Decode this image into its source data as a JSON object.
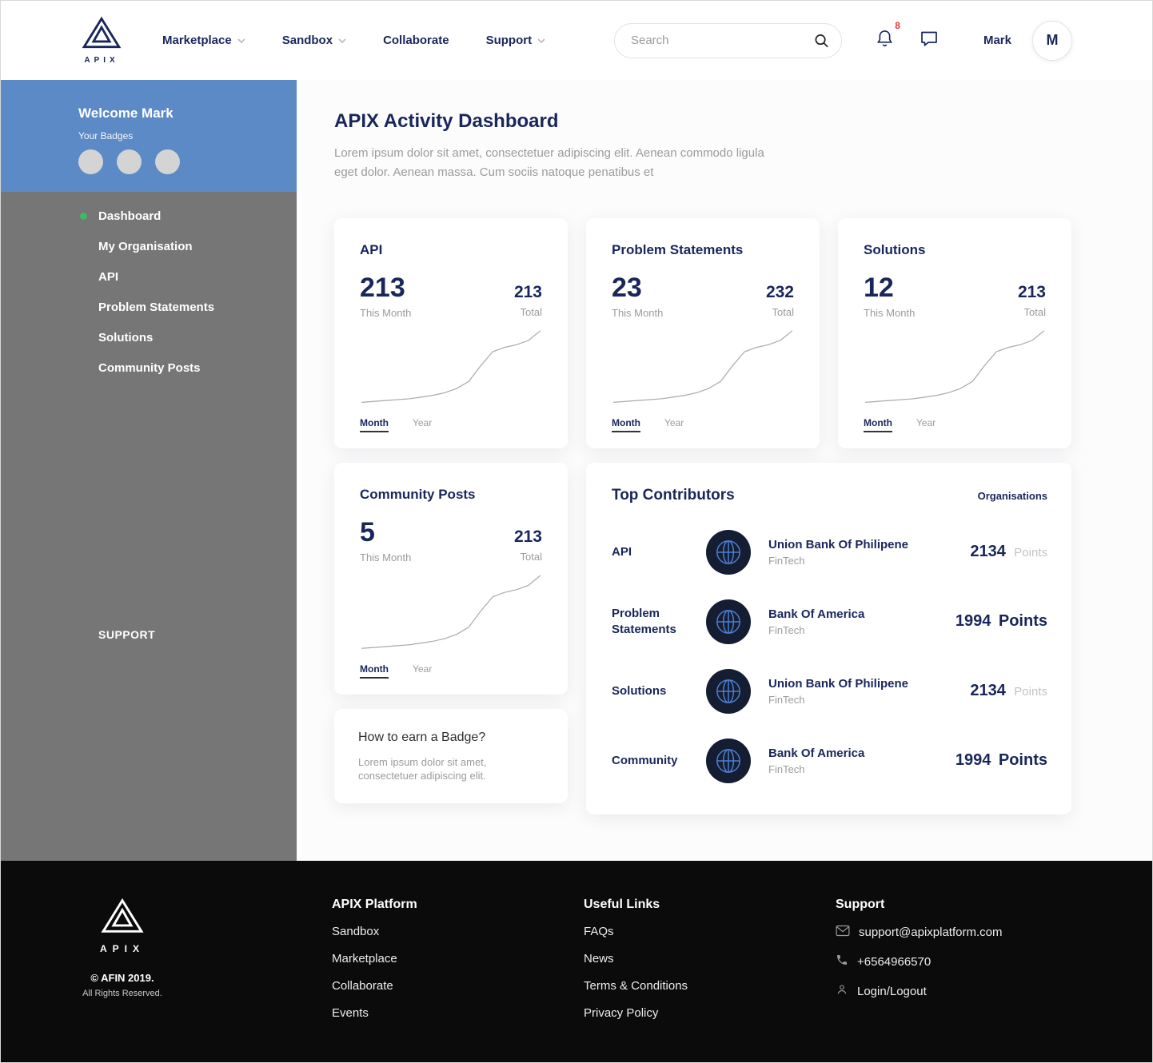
{
  "colors": {
    "navy": "#18265b",
    "blue": "#5b8ac6",
    "sidebarGray": "#767676",
    "green": "#3cba62",
    "red": "#e53935",
    "footerBlack": "#0b0b0b"
  },
  "navbar": {
    "logo_text": "APIX",
    "items": [
      {
        "label": "Marketplace"
      },
      {
        "label": "Sandbox"
      },
      {
        "label": "Collaborate"
      },
      {
        "label": "Support"
      }
    ],
    "search_placeholder": "Search",
    "notification_count": "8",
    "user_name": "Mark",
    "avatar_initial": "M"
  },
  "sidebar": {
    "welcome": "Welcome Mark",
    "badges_label": "Your Badges",
    "items": [
      {
        "label": "Dashboard"
      },
      {
        "label": "My Organisation"
      },
      {
        "label": "API"
      },
      {
        "label": "Problem Statements"
      },
      {
        "label": "Solutions"
      },
      {
        "label": "Community Posts"
      }
    ],
    "support_label": "SUPPORT"
  },
  "main": {
    "title": "APIX Activity Dashboard",
    "subtitle": "Lorem ipsum dolor sit amet, consectetuer adipiscing elit. Aenean commodo ligula eget dolor. Aenean massa. Cum sociis natoque penatibus et",
    "toggle": {
      "month": "Month",
      "year": "Year"
    },
    "stat_cards": [
      {
        "title": "API",
        "month_value": "213",
        "month_label": "This Month",
        "total_value": "213",
        "total_label": "Total",
        "sparkline": [
          2,
          3,
          4,
          5,
          6,
          8,
          10,
          13,
          18,
          26,
          44,
          60,
          65,
          68,
          73,
          84
        ]
      },
      {
        "title": "Problem Statements",
        "month_value": "23",
        "month_label": "This Month",
        "total_value": "232",
        "total_label": "Total",
        "sparkline": [
          2,
          3,
          4,
          5,
          6,
          8,
          10,
          13,
          18,
          26,
          44,
          60,
          65,
          68,
          73,
          84
        ]
      },
      {
        "title": "Solutions",
        "month_value": "12",
        "month_label": "This Month",
        "total_value": "213",
        "total_label": "Total",
        "sparkline": [
          2,
          3,
          4,
          5,
          6,
          8,
          10,
          13,
          18,
          26,
          44,
          60,
          65,
          68,
          73,
          84
        ]
      },
      {
        "title": "Community Posts",
        "month_value": "5",
        "month_label": "This Month",
        "total_value": "213",
        "total_label": "Total",
        "sparkline": [
          2,
          3,
          4,
          5,
          6,
          8,
          10,
          13,
          18,
          26,
          44,
          60,
          65,
          68,
          73,
          84
        ]
      }
    ],
    "contributors": {
      "title": "Top Contributors",
      "column_label": "Organisations",
      "rows": [
        {
          "category": "API",
          "org": "Union Bank Of Philipene",
          "org_type": "FinTech",
          "points": "2134",
          "points_label": "Points"
        },
        {
          "category": "Problem Statements",
          "org": "Bank Of America",
          "org_type": "FinTech",
          "points": "1994",
          "points_label": "Points"
        },
        {
          "category": "Solutions",
          "org": "Union Bank Of Philipene",
          "org_type": "FinTech",
          "points": "2134",
          "points_label": "Points"
        },
        {
          "category": "Community",
          "org": "Bank Of America",
          "org_type": "FinTech",
          "points": "1994",
          "points_label": "Points"
        }
      ]
    },
    "badge_card": {
      "title": "How to earn a Badge?",
      "text": "Lorem ipsum dolor sit amet, consectetuer adipiscing elit."
    }
  },
  "footer": {
    "logo_text": "APIX",
    "copyright": "© AFIN 2019.",
    "rights": "All Rights Reserved.",
    "columns": [
      {
        "title": "APIX Platform",
        "links": [
          "Sandbox",
          "Marketplace",
          "Collaborate",
          "Events"
        ]
      },
      {
        "title": "Useful Links",
        "links": [
          "FAQs",
          "News",
          "Terms & Conditions",
          "Privacy Policy"
        ]
      }
    ],
    "support": {
      "title": "Support",
      "items": [
        {
          "icon": "email-icon",
          "label": "support@apixplatform.com"
        },
        {
          "icon": "phone-icon",
          "label": "+6564966570"
        },
        {
          "icon": "person-icon",
          "label": "Login/Logout"
        }
      ]
    }
  }
}
